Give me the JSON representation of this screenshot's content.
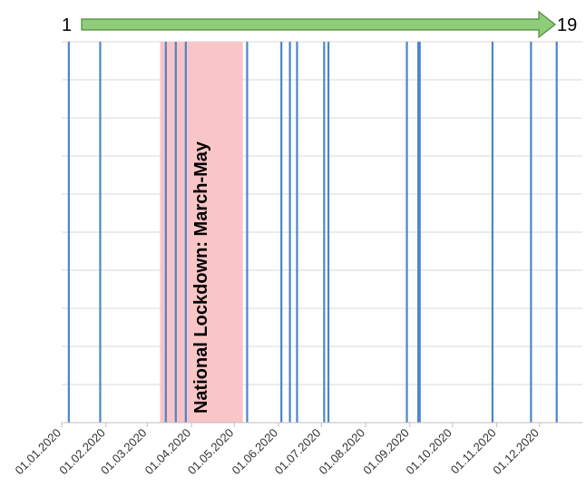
{
  "chart_data": {
    "type": "timeline",
    "title": "",
    "xlabel": "",
    "ylabel": "",
    "x_axis": {
      "type": "date",
      "range": [
        "2020-01-01",
        "2020-12-31"
      ],
      "tick_values": [
        "2020-01-01",
        "2020-02-01",
        "2020-03-01",
        "2020-04-01",
        "2020-05-01",
        "2020-06-01",
        "2020-07-01",
        "2020-08-01",
        "2020-09-01",
        "2020-10-01",
        "2020-11-01",
        "2020-12-01"
      ],
      "tick_labels": [
        "01.01.2020",
        "01.02.2020",
        "01.03.2020",
        "01.04.2020",
        "01.05.2020",
        "01.06.2020",
        "01.07.2020",
        "01.08.2020",
        "01.09.2020",
        "01.10.2020",
        "01.11.2020",
        "01.12.2020"
      ]
    },
    "grid": true,
    "highlight_range": {
      "start": "2020-03-10",
      "end": "2020-05-07",
      "label": "National Lockdown: March-May",
      "color": "#f9c5c7"
    },
    "events": [
      "2020-01-06",
      "2020-01-28",
      "2020-03-14",
      "2020-03-21",
      "2020-03-28",
      "2020-05-10",
      "2020-06-03",
      "2020-06-09",
      "2020-06-14",
      "2020-07-03",
      "2020-07-06",
      "2020-08-30",
      "2020-09-07",
      "2020-09-08",
      "2020-10-29",
      "2020-11-25",
      "2020-12-13"
    ],
    "event_color": "#4a86c8",
    "sequence_arrow": {
      "start_label": "1",
      "end_label": "19",
      "color": "#8fcd7a",
      "stroke": "#4c8a3c"
    }
  }
}
